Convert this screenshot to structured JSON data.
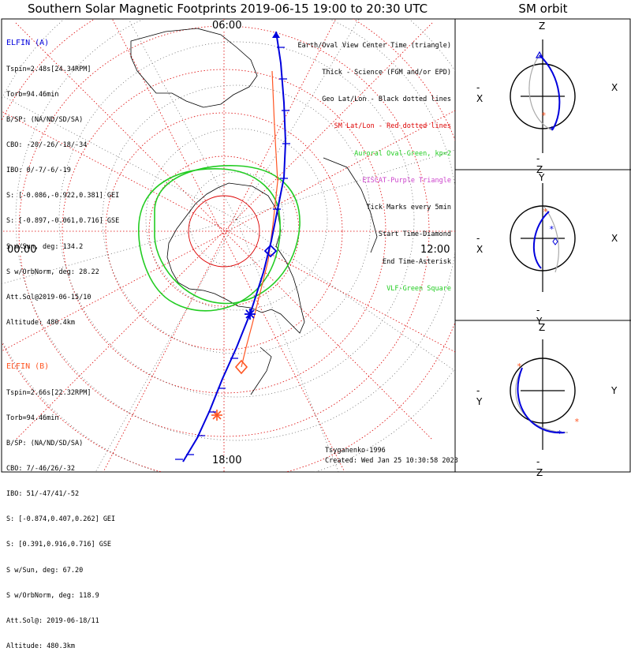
{
  "title": "Southern Solar Magnetic Footprints 2019-06-15 19:00 to 20:30 UTC",
  "orbit_panel_title": "SM orbit",
  "mlt_labels": {
    "top": "06:00",
    "left": "00:00",
    "right": "12:00",
    "bottom": "18:00"
  },
  "colors": {
    "elfin_a": "#0000dd",
    "elfin_b": "#ff5522",
    "oval": "#22cc22",
    "geo_grid": "#000000",
    "sm_grid": "#dd0000",
    "eiscat": "#cc44cc"
  },
  "elfin_a": {
    "name": "ELFIN (A)",
    "lines": [
      "Tspin=2.48s[24.34RPM]",
      "Torb=94.46min",
      "B/SP: (NA/ND/SD/SA)",
      "CBO: -20/-26/-18/-34",
      "IBO: 0/-7/-6/-19",
      "S: [-0.086,-0.922,0.381] GEI",
      "S: [-0.897,-0.061,0.716] GSE",
      "S w/Sun, deg: 134.2",
      "S w/OrbNorm, deg: 28.22",
      "Att.Sol@2019-06-15/10",
      "Altitude: 480.4km"
    ]
  },
  "elfin_b": {
    "name": "ELFIN (B)",
    "lines": [
      "Tspin=2.66s[22.32RPM]",
      "Torb=94.46min",
      "B/SP: (NA/ND/SD/SA)",
      "CBO: 7/-46/26/-32",
      "IBO: 51/-47/41/-52",
      "S: [-0.874,0.407,0.262] GEI",
      "S: [0.391,0.916,0.716] GSE",
      "S w/Sun, deg: 67.20",
      "S w/OrbNorm, deg: 118.9",
      "Att.Sol@: 2019-06-18/11",
      "Altitude: 480.3km"
    ]
  },
  "legend": [
    {
      "text": "Earth/Oval View Center Time (triangle)",
      "color": "#000000"
    },
    {
      "text": "Thick - Science (FGM and/or EPD)",
      "color": "#000000"
    },
    {
      "text": "Geo Lat/Lon - Black dotted lines",
      "color": "#000000"
    },
    {
      "text": "SM Lat/Lon - Red dotted lines",
      "color": "#dd0000"
    },
    {
      "text": "Auroral Oval-Green, kp=2",
      "color": "#22cc22"
    },
    {
      "text": "EISCAT-Purple Triangle",
      "color": "#cc44cc"
    },
    {
      "text": "Tick Marks every 5min",
      "color": "#000000"
    },
    {
      "text": "Start Time-Diamond",
      "color": "#000000"
    },
    {
      "text": "End Time-Asterisk",
      "color": "#000000"
    },
    {
      "text": "VLF-Green Square",
      "color": "#22cc22"
    }
  ],
  "footer": {
    "model": "Tsyganenko-1996",
    "created": "Created: Wed Jan 25 10:30:58 2023"
  },
  "orbit_panels": [
    {
      "name": "xz",
      "top": "Z",
      "bottom": "-Z",
      "left": "-X",
      "right": "X"
    },
    {
      "name": "xy",
      "top": "Y",
      "bottom": "-Y",
      "left": "-X",
      "right": "X"
    },
    {
      "name": "yz",
      "top": "Z",
      "bottom": "-Z",
      "left": "-Y",
      "right": "Y"
    }
  ]
}
